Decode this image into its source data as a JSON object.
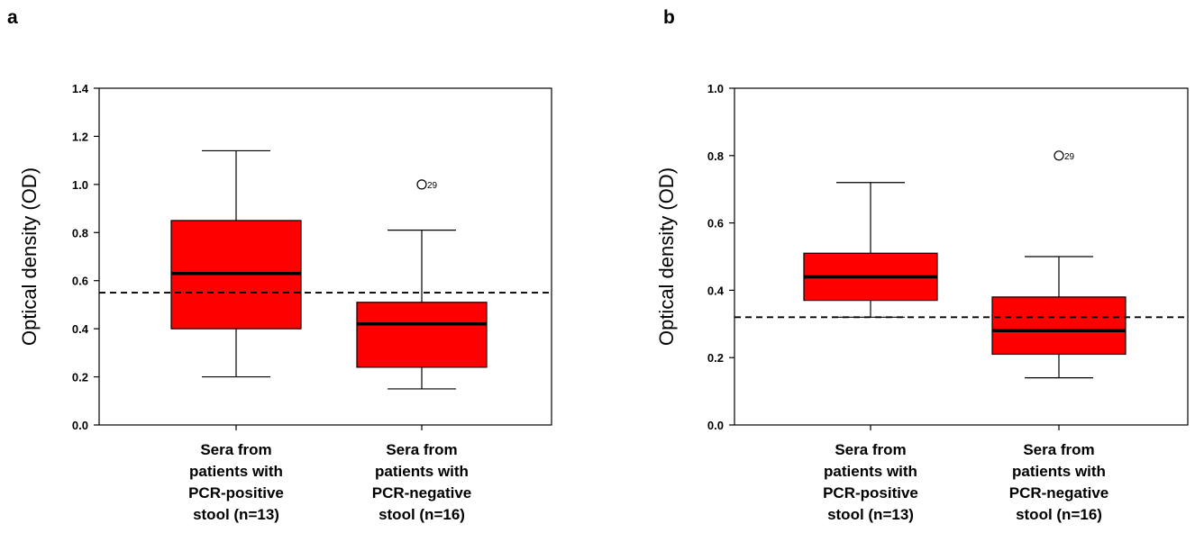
{
  "figure": {
    "panel_labels": [
      "a",
      "b"
    ]
  },
  "chart_data": [
    {
      "panel": "a",
      "type": "box",
      "title": "",
      "xlabel": "",
      "ylabel": "Optical density (OD)",
      "ylim": [
        0,
        1.4
      ],
      "yticks": [
        "0.0",
        "0.2",
        "0.4",
        "0.6",
        "0.8",
        "1.0",
        "1.2",
        "1.4"
      ],
      "categories": [
        [
          "Sera from",
          "patients with",
          "PCR-positive",
          "stool (n=13)"
        ],
        [
          "Sera from",
          "patients with",
          "PCR-negative",
          "stool (n=16)"
        ]
      ],
      "boxes": [
        {
          "whisker_low": 0.2,
          "q1": 0.4,
          "median": 0.63,
          "q3": 0.85,
          "whisker_high": 1.14,
          "outliers": []
        },
        {
          "whisker_low": 0.15,
          "q1": 0.24,
          "median": 0.42,
          "q3": 0.51,
          "whisker_high": 0.81,
          "outliers": [
            {
              "value": 1.0,
              "label": "29"
            }
          ]
        }
      ],
      "cutoff": 0.55,
      "box_color": "#ff0000"
    },
    {
      "panel": "b",
      "type": "box",
      "title": "",
      "xlabel": "",
      "ylabel": "Optical density (OD)",
      "ylim": [
        0,
        1.0
      ],
      "yticks": [
        "0.0",
        "0.2",
        "0.4",
        "0.6",
        "0.8",
        "1.0"
      ],
      "categories": [
        [
          "Sera from",
          "patients with",
          "PCR-positive",
          "stool (n=13)"
        ],
        [
          "Sera from",
          "patients with",
          "PCR-negative",
          "stool (n=16)"
        ]
      ],
      "boxes": [
        {
          "whisker_low": 0.32,
          "q1": 0.37,
          "median": 0.44,
          "q3": 0.51,
          "whisker_high": 0.72,
          "outliers": []
        },
        {
          "whisker_low": 0.14,
          "q1": 0.21,
          "median": 0.28,
          "q3": 0.38,
          "whisker_high": 0.5,
          "outliers": [
            {
              "value": 0.8,
              "label": "29"
            }
          ]
        }
      ],
      "cutoff": 0.32,
      "box_color": "#ff0000"
    }
  ]
}
